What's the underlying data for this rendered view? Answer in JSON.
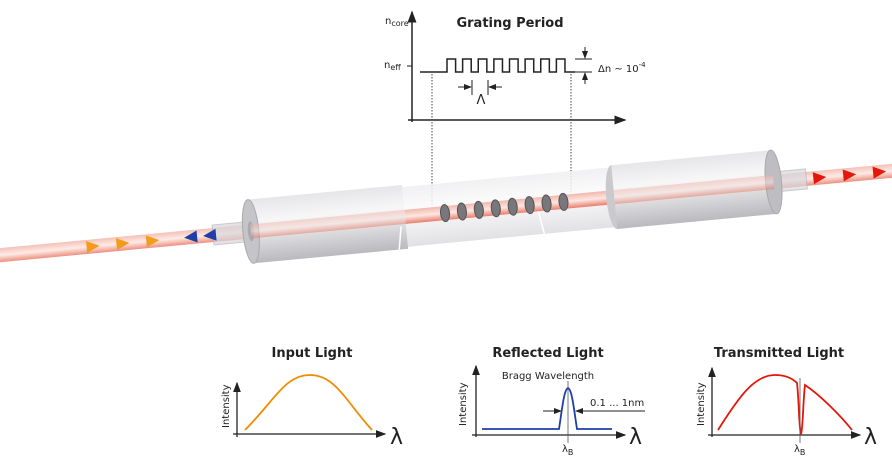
{
  "grating_plot": {
    "title": "Grating Period",
    "y_label_top": "n",
    "y_label_top_sub": "core",
    "y_label_mid": "n",
    "y_label_mid_sub": "eff",
    "period_symbol": "Λ",
    "delta_label": "Δn ~ 10",
    "delta_exp": "-4",
    "periods": 8
  },
  "fiber": {
    "colors": {
      "core": "#e8735f",
      "input_arrow": "#f39c1c",
      "reflected_arrow": "#1f3fa8",
      "transmitted_arrow": "#e3170a",
      "housing": "#cfcfd3"
    }
  },
  "input_plot": {
    "title": "Input Light",
    "ylabel": "Intensity",
    "xlabel": "λ",
    "color": "#f28c00"
  },
  "reflected_plot": {
    "title": "Reflected Light",
    "ylabel": "Intensity",
    "xlabel": "λ",
    "annotation": "Bragg Wavelength",
    "bandwidth": "0.1 ... 1nm",
    "marker": "λ",
    "marker_sub": "B",
    "color": "#1f3fa8"
  },
  "transmitted_plot": {
    "title": "Transmitted Light",
    "ylabel": "Intensity",
    "xlabel": "λ",
    "marker": "λ",
    "marker_sub": "B",
    "color": "#e3170a"
  }
}
